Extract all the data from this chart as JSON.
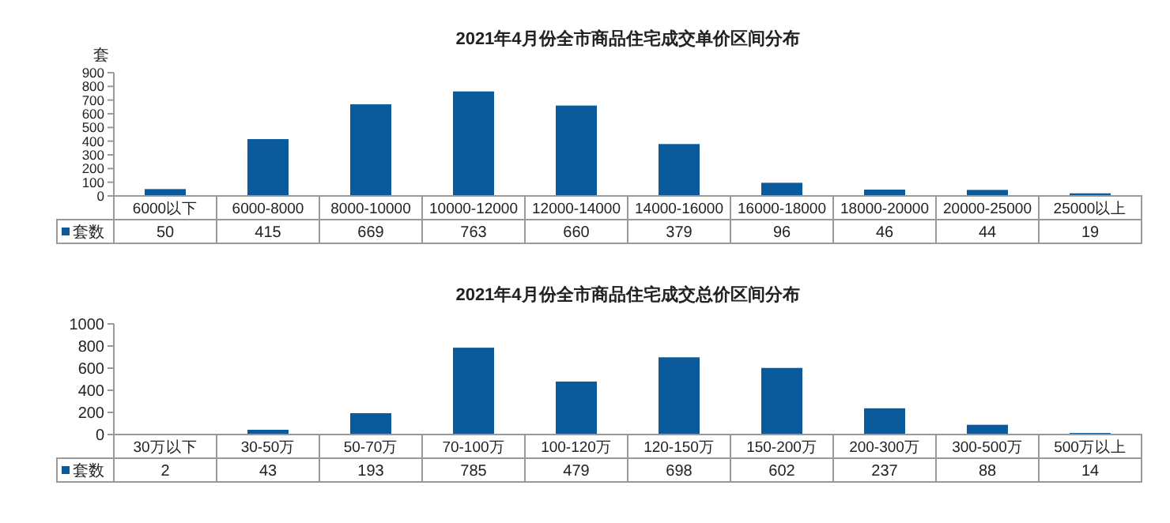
{
  "chart_data": [
    {
      "type": "bar",
      "title": "2021年4月份全市商品住宅成交单价区间分布",
      "ylabel": "套",
      "categories": [
        "6000以下",
        "6000-8000",
        "8000-10000",
        "10000-12000",
        "12000-14000",
        "14000-16000",
        "16000-18000",
        "18000-20000",
        "20000-25000",
        "25000以上"
      ],
      "series": [
        {
          "name": "套数",
          "color": "#0b5a9c",
          "values": [
            50,
            415,
            669,
            763,
            660,
            379,
            96,
            46,
            44,
            19
          ]
        }
      ],
      "ylim": [
        0,
        900
      ],
      "yticks": [
        0,
        100,
        200,
        300,
        400,
        500,
        600,
        700,
        800,
        900
      ],
      "data_labels": true,
      "legend": "bottom left",
      "grid": false
    },
    {
      "type": "bar",
      "title": "2021年4月份全市商品住宅成交总价区间分布",
      "categories": [
        "30万以下",
        "30-50万",
        "50-70万",
        "70-100万",
        "100-120万",
        "120-150万",
        "150-200万",
        "200-300万",
        "300-500万",
        "500万以上"
      ],
      "series": [
        {
          "name": "套数",
          "color": "#0b5a9c",
          "values": [
            2,
            43,
            193,
            785,
            479,
            698,
            602,
            237,
            88,
            14
          ]
        }
      ],
      "ylim": [
        0,
        1000
      ],
      "yticks": [
        0,
        200,
        400,
        600,
        800,
        1000
      ],
      "data_labels": true,
      "legend": "bottom left",
      "grid": false
    }
  ]
}
